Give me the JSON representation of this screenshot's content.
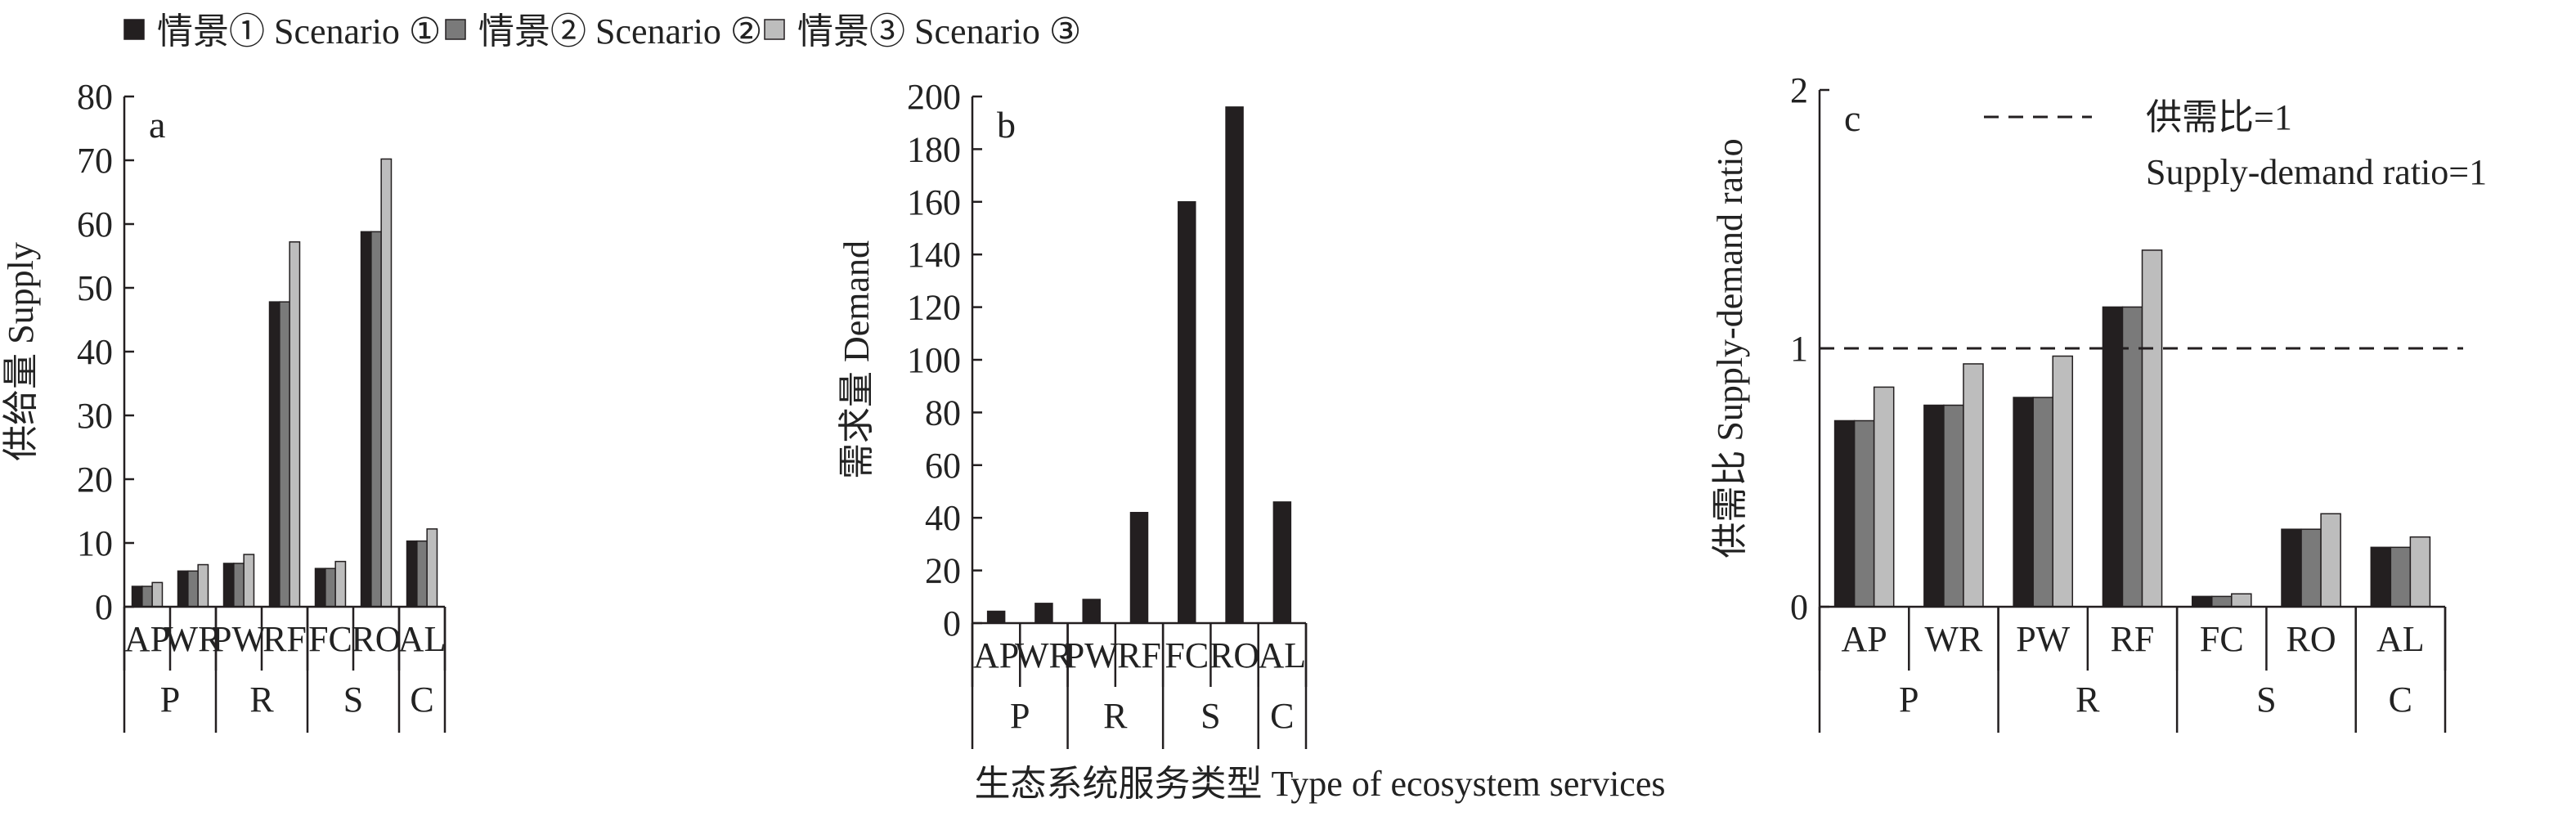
{
  "legend": {
    "position": "top-left",
    "items": [
      {
        "label": "情景① Scenario ①",
        "color": "#231f20"
      },
      {
        "label": "情景② Scenario ②",
        "color": "#7a7a7a"
      },
      {
        "label": "情景③ Scenario ③",
        "color": "#bdbdbd"
      }
    ]
  },
  "xlabel": "生态系统服务类型 Type of ecosystem services",
  "chart_data": [
    {
      "type": "bar",
      "panel_label": "a",
      "ylabel": "供给量 Supply",
      "ylim": [
        0,
        80
      ],
      "yticks": [
        0,
        10,
        20,
        30,
        40,
        50,
        60,
        70,
        80
      ],
      "categories": [
        "AP",
        "WR",
        "PW",
        "RF",
        "FC",
        "RO",
        "AL"
      ],
      "groups": [
        {
          "label": "P",
          "categories": [
            "AP",
            "WR"
          ]
        },
        {
          "label": "R",
          "categories": [
            "PW",
            "RF"
          ]
        },
        {
          "label": "S",
          "categories": [
            "FC",
            "RO"
          ]
        },
        {
          "label": "C",
          "categories": [
            "AL"
          ]
        }
      ],
      "series": [
        {
          "name": "情景① Scenario ①",
          "values": [
            3.2,
            5.6,
            6.8,
            47.8,
            6.0,
            58.8,
            10.3
          ]
        },
        {
          "name": "情景② Scenario ②",
          "values": [
            3.2,
            5.6,
            6.8,
            47.8,
            6.0,
            58.8,
            10.3
          ]
        },
        {
          "name": "情景③ Scenario ③",
          "values": [
            3.8,
            6.6,
            8.2,
            57.2,
            7.1,
            70.2,
            12.2
          ]
        }
      ]
    },
    {
      "type": "bar",
      "panel_label": "b",
      "ylabel": "需求量 Demand",
      "ylim": [
        0,
        200
      ],
      "yticks": [
        0,
        20,
        40,
        60,
        80,
        100,
        120,
        140,
        160,
        180,
        200
      ],
      "categories": [
        "AP",
        "WR",
        "PW",
        "RF",
        "FC",
        "RO",
        "AL"
      ],
      "groups": [
        {
          "label": "P",
          "categories": [
            "AP",
            "WR"
          ]
        },
        {
          "label": "R",
          "categories": [
            "PW",
            "RF"
          ]
        },
        {
          "label": "S",
          "categories": [
            "FC",
            "RO"
          ]
        },
        {
          "label": "C",
          "categories": [
            "AL"
          ]
        }
      ],
      "series": [
        {
          "name": "",
          "values": [
            4.5,
            7.5,
            9.0,
            42.0,
            160.0,
            196.0,
            46.0
          ]
        }
      ]
    },
    {
      "type": "bar",
      "panel_label": "c",
      "ylabel": "供需比 Supply-demand ratio",
      "ylim": [
        0,
        2
      ],
      "yticks": [
        0,
        1,
        2
      ],
      "categories": [
        "AP",
        "WR",
        "PW",
        "RF",
        "FC",
        "RO",
        "AL"
      ],
      "groups": [
        {
          "label": "P",
          "categories": [
            "AP",
            "WR"
          ]
        },
        {
          "label": "R",
          "categories": [
            "PW",
            "RF"
          ]
        },
        {
          "label": "S",
          "categories": [
            "FC",
            "RO"
          ]
        },
        {
          "label": "C",
          "categories": [
            "AL"
          ]
        }
      ],
      "series": [
        {
          "name": "情景① Scenario ①",
          "values": [
            0.72,
            0.78,
            0.81,
            1.16,
            0.04,
            0.3,
            0.23
          ]
        },
        {
          "name": "情景② Scenario ②",
          "values": [
            0.72,
            0.78,
            0.81,
            1.16,
            0.04,
            0.3,
            0.23
          ]
        },
        {
          "name": "情景③ Scenario ③",
          "values": [
            0.85,
            0.94,
            0.97,
            1.38,
            0.05,
            0.36,
            0.27
          ]
        }
      ],
      "reference_line": {
        "value": 1,
        "style": "dashed",
        "label_line1": "供需比=1",
        "label_line2": "Supply-demand ratio=1"
      }
    }
  ]
}
